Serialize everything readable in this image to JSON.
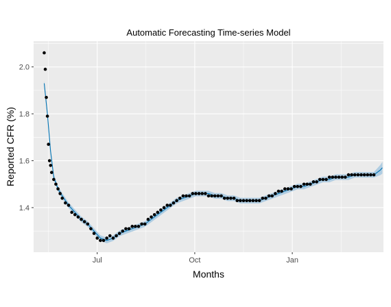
{
  "chart_data": {
    "type": "line",
    "title": "Automatic Forecasting Time-series Model",
    "xlabel": "Months",
    "ylabel": "Reported CFR (%)",
    "x_axis": {
      "type": "date",
      "ticks": [
        "Jul",
        "Oct",
        "Jan"
      ],
      "tick_dates": [
        "2020-07-01",
        "2020-10-01",
        "2021-01-01"
      ],
      "range": [
        "2020-05-02",
        "2021-03-28"
      ]
    },
    "ylim": [
      1.21,
      2.11
    ],
    "y_ticks": [
      1.4,
      1.6,
      1.8,
      2.0
    ],
    "y_tick_labels": [
      "1.4",
      "1.6",
      "1.8",
      "2.0"
    ],
    "grid": true,
    "background": "#ebebeb",
    "colors": {
      "forecast_line": "#0072b2",
      "interval_band": "#a6c8e0",
      "observed_points": "#000000",
      "grid": "#ffffff"
    },
    "series": [
      {
        "name": "observed",
        "kind": "scatter",
        "x": [
          "2020-05-12",
          "2020-05-13",
          "2020-05-14",
          "2020-05-15",
          "2020-05-16",
          "2020-05-17",
          "2020-05-18",
          "2020-05-19",
          "2020-05-21",
          "2020-05-23",
          "2020-05-25",
          "2020-05-27",
          "2020-05-29",
          "2020-06-01",
          "2020-06-04",
          "2020-06-07",
          "2020-06-10",
          "2020-06-13",
          "2020-06-16",
          "2020-06-19",
          "2020-06-22",
          "2020-06-25",
          "2020-06-28",
          "2020-07-01",
          "2020-07-04",
          "2020-07-07",
          "2020-07-10",
          "2020-07-13",
          "2020-07-16",
          "2020-07-19",
          "2020-07-22",
          "2020-07-25",
          "2020-07-28",
          "2020-07-31",
          "2020-08-03",
          "2020-08-06",
          "2020-08-09",
          "2020-08-12",
          "2020-08-15",
          "2020-08-18",
          "2020-08-21",
          "2020-08-24",
          "2020-08-27",
          "2020-08-30",
          "2020-09-02",
          "2020-09-05",
          "2020-09-08",
          "2020-09-11",
          "2020-09-14",
          "2020-09-17",
          "2020-09-20",
          "2020-09-23",
          "2020-09-26",
          "2020-09-29",
          "2020-10-02",
          "2020-10-05",
          "2020-10-08",
          "2020-10-11",
          "2020-10-14",
          "2020-10-17",
          "2020-10-20",
          "2020-10-23",
          "2020-10-26",
          "2020-10-29",
          "2020-11-01",
          "2020-11-04",
          "2020-11-07",
          "2020-11-10",
          "2020-11-13",
          "2020-11-16",
          "2020-11-19",
          "2020-11-22",
          "2020-11-25",
          "2020-11-28",
          "2020-12-01",
          "2020-12-04",
          "2020-12-07",
          "2020-12-10",
          "2020-12-13",
          "2020-12-16",
          "2020-12-19",
          "2020-12-22",
          "2020-12-25",
          "2020-12-28",
          "2020-12-31",
          "2021-01-03",
          "2021-01-06",
          "2021-01-09",
          "2021-01-12",
          "2021-01-15",
          "2021-01-18",
          "2021-01-21",
          "2021-01-24",
          "2021-01-27",
          "2021-01-30",
          "2021-02-02",
          "2021-02-05",
          "2021-02-08",
          "2021-02-11",
          "2021-02-14",
          "2021-02-17",
          "2021-02-20",
          "2021-02-23",
          "2021-02-26",
          "2021-03-01",
          "2021-03-04",
          "2021-03-07",
          "2021-03-10",
          "2021-03-13",
          "2021-03-16",
          "2021-03-19"
        ],
        "y": [
          2.06,
          1.99,
          1.87,
          1.79,
          1.67,
          1.6,
          1.58,
          1.55,
          1.52,
          1.5,
          1.48,
          1.46,
          1.44,
          1.42,
          1.41,
          1.38,
          1.37,
          1.36,
          1.35,
          1.34,
          1.33,
          1.31,
          1.29,
          1.27,
          1.26,
          1.26,
          1.27,
          1.28,
          1.27,
          1.28,
          1.29,
          1.3,
          1.31,
          1.31,
          1.32,
          1.32,
          1.32,
          1.33,
          1.33,
          1.35,
          1.36,
          1.37,
          1.38,
          1.39,
          1.4,
          1.41,
          1.41,
          1.42,
          1.43,
          1.44,
          1.45,
          1.45,
          1.45,
          1.46,
          1.46,
          1.46,
          1.46,
          1.46,
          1.45,
          1.45,
          1.45,
          1.45,
          1.45,
          1.44,
          1.44,
          1.44,
          1.44,
          1.43,
          1.43,
          1.43,
          1.43,
          1.43,
          1.43,
          1.43,
          1.43,
          1.44,
          1.44,
          1.45,
          1.45,
          1.46,
          1.47,
          1.47,
          1.48,
          1.48,
          1.48,
          1.49,
          1.49,
          1.49,
          1.5,
          1.5,
          1.5,
          1.51,
          1.51,
          1.52,
          1.52,
          1.52,
          1.53,
          1.53,
          1.53,
          1.53,
          1.53,
          1.53,
          1.54,
          1.54,
          1.54,
          1.54,
          1.54,
          1.54,
          1.54,
          1.54,
          1.54
        ]
      },
      {
        "name": "fitted",
        "kind": "line",
        "x": [
          "2020-05-12",
          "2020-05-15",
          "2020-05-18",
          "2020-05-21",
          "2020-05-25",
          "2020-05-29",
          "2020-06-04",
          "2020-06-10",
          "2020-06-16",
          "2020-06-22",
          "2020-06-28",
          "2020-07-04",
          "2020-07-10",
          "2020-07-16",
          "2020-07-22",
          "2020-07-28",
          "2020-08-03",
          "2020-08-09",
          "2020-08-15",
          "2020-08-21",
          "2020-08-27",
          "2020-09-02",
          "2020-09-08",
          "2020-09-14",
          "2020-09-20",
          "2020-09-26",
          "2020-10-02",
          "2020-10-08",
          "2020-10-14",
          "2020-10-20",
          "2020-10-26",
          "2020-11-01",
          "2020-11-07",
          "2020-11-13",
          "2020-11-19",
          "2020-11-25",
          "2020-12-01",
          "2020-12-07",
          "2020-12-13",
          "2020-12-19",
          "2020-12-25",
          "2020-12-31",
          "2021-01-06",
          "2021-01-12",
          "2021-01-18",
          "2021-01-24",
          "2021-01-30",
          "2021-02-05",
          "2021-02-11",
          "2021-02-17",
          "2021-02-23",
          "2021-03-01",
          "2021-03-07",
          "2021-03-13",
          "2021-03-19",
          "2021-03-22",
          "2021-03-25",
          "2021-03-27"
        ],
        "y": [
          1.93,
          1.8,
          1.64,
          1.53,
          1.48,
          1.45,
          1.41,
          1.38,
          1.35,
          1.33,
          1.3,
          1.27,
          1.26,
          1.27,
          1.29,
          1.3,
          1.31,
          1.32,
          1.33,
          1.35,
          1.37,
          1.39,
          1.41,
          1.43,
          1.44,
          1.45,
          1.46,
          1.46,
          1.46,
          1.45,
          1.45,
          1.44,
          1.44,
          1.43,
          1.43,
          1.43,
          1.43,
          1.44,
          1.45,
          1.46,
          1.47,
          1.48,
          1.49,
          1.49,
          1.5,
          1.51,
          1.52,
          1.52,
          1.53,
          1.53,
          1.53,
          1.54,
          1.54,
          1.54,
          1.54,
          1.55,
          1.56,
          1.57
        ]
      }
    ],
    "interval_halfwidth": 0.012,
    "interval_halfwidth_end": 0.025
  }
}
